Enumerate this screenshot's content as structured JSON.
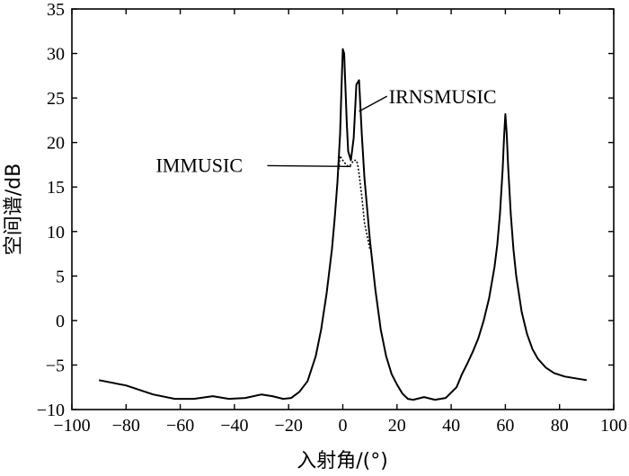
{
  "chart_data": {
    "type": "line",
    "xlabel": "入射角/(°)",
    "ylabel": "空间谱/dB",
    "xlim": [
      -100,
      100
    ],
    "ylim": [
      -10,
      35
    ],
    "xticks": [
      -100,
      -80,
      -60,
      -40,
      -20,
      0,
      20,
      40,
      60,
      80,
      100
    ],
    "yticks": [
      -10,
      -5,
      0,
      5,
      10,
      15,
      20,
      25,
      30,
      35
    ],
    "xtick_labels": [
      "−100",
      "−80",
      "−60",
      "−40",
      "−20",
      "0",
      "20",
      "40",
      "60",
      "80",
      "100"
    ],
    "ytick_labels": [
      "−10",
      "−5",
      "0",
      "5",
      "10",
      "15",
      "20",
      "25",
      "30",
      "35"
    ],
    "grid": false,
    "series": [
      {
        "name": "IRNSMUSIC",
        "style": "solid",
        "x": [
          -90,
          -80,
          -70,
          -62,
          -55,
          -48,
          -42,
          -36,
          -30,
          -26,
          -22,
          -19,
          -16,
          -13,
          -10,
          -8,
          -6,
          -4,
          -3,
          -2,
          -1,
          -0.5,
          0,
          0.5,
          1,
          1.5,
          2,
          3,
          4,
          5,
          6,
          7,
          8,
          10,
          12,
          14,
          16,
          18,
          20,
          22,
          24,
          26,
          30,
          34,
          38,
          42,
          44,
          46,
          48,
          50,
          52,
          54,
          56,
          57,
          58,
          59,
          59.5,
          60,
          60.5,
          61,
          62,
          63,
          64,
          66,
          68,
          70,
          72,
          75,
          78,
          82,
          86,
          90
        ],
        "y": [
          -6.7,
          -7.3,
          -8.3,
          -8.8,
          -8.8,
          -8.5,
          -8.8,
          -8.7,
          -8.3,
          -8.5,
          -8.8,
          -8.7,
          -8.0,
          -6.8,
          -4.0,
          -1.0,
          3.0,
          8.0,
          11.5,
          15.5,
          21.0,
          26.0,
          30.5,
          30.0,
          26.0,
          22.0,
          19.0,
          18.0,
          20.5,
          26.5,
          27.0,
          21.0,
          16.0,
          9.0,
          3.5,
          -1.0,
          -4.0,
          -6.0,
          -7.2,
          -8.2,
          -8.8,
          -8.9,
          -8.6,
          -8.9,
          -8.7,
          -7.5,
          -6.0,
          -4.8,
          -3.5,
          -2.0,
          0.0,
          2.5,
          6.0,
          8.5,
          12.0,
          17.0,
          20.5,
          23.2,
          21.0,
          17.5,
          12.0,
          8.0,
          5.0,
          1.0,
          -1.5,
          -3.2,
          -4.3,
          -5.3,
          -5.9,
          -6.3,
          -6.5,
          -6.7
        ]
      },
      {
        "name": "IMMUSIC",
        "style": "dotted",
        "x": [
          -1.5,
          -1,
          -0.5,
          0,
          1,
          2,
          3,
          4,
          5,
          5.5,
          6,
          7,
          8,
          10
        ],
        "y": [
          17.0,
          18.5,
          18.2,
          18.0,
          17.6,
          17.3,
          17.5,
          18.0,
          18.0,
          17.5,
          16.5,
          14.0,
          11.0,
          8.0
        ]
      }
    ],
    "annotations": [
      {
        "text": "IRNSMUSIC",
        "x": 17,
        "y": 25.2,
        "target_x": 6,
        "target_y": 23.5
      },
      {
        "text": "IMMUSIC",
        "x": -69,
        "y": 17.5,
        "target_x": 3,
        "target_y": 17.3
      }
    ]
  }
}
